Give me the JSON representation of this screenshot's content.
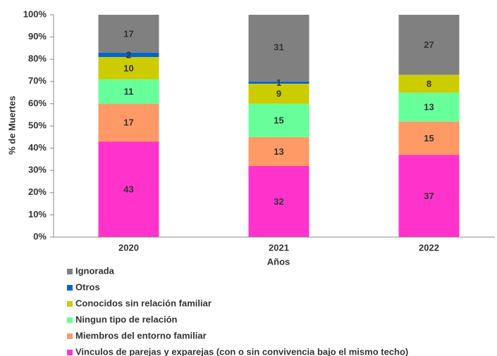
{
  "chart_data": {
    "type": "stacked_bar",
    "categories": [
      "2020",
      "2021",
      "2022"
    ],
    "xlabel": "Años",
    "ylabel": "% de Muertes",
    "ylim": [
      0,
      100
    ],
    "yticks": [
      {
        "value": 0,
        "label": "0%"
      },
      {
        "value": 10,
        "label": "10%"
      },
      {
        "value": 20,
        "label": "20%"
      },
      {
        "value": 30,
        "label": "30%"
      },
      {
        "value": 40,
        "label": "40%"
      },
      {
        "value": 50,
        "label": "50%"
      },
      {
        "value": 60,
        "label": "60%"
      },
      {
        "value": 70,
        "label": "70%"
      },
      {
        "value": 80,
        "label": "80%"
      },
      {
        "value": 90,
        "label": "90%"
      },
      {
        "value": 100,
        "label": "100%"
      }
    ],
    "legend": "bottom",
    "series": [
      {
        "name": "Vinculos de parejas y exparejas (con o sin convivencia bajo el mismo techo)",
        "color": "#ff33cc",
        "values": [
          43,
          32,
          37
        ]
      },
      {
        "name": "Miembros del entorno familiar",
        "color": "#ff9966",
        "values": [
          17,
          13,
          15
        ]
      },
      {
        "name": "Ningun tipo de relación",
        "color": "#66ff99",
        "values": [
          11,
          15,
          13
        ]
      },
      {
        "name": "Conocidos sin relación familiar",
        "color": "#cccc00",
        "values": [
          10,
          9,
          8
        ]
      },
      {
        "name": "Otros",
        "color": "#0066cc",
        "values": [
          2,
          1,
          0
        ]
      },
      {
        "name": "Ignorada",
        "color": "#808080",
        "values": [
          17,
          31,
          27
        ]
      }
    ]
  }
}
